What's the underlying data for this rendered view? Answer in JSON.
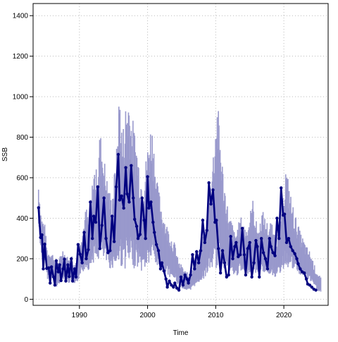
{
  "chart_data": {
    "type": "line",
    "xlabel": "Time",
    "ylabel": "SSB",
    "xlim": [
      1983.2,
      2026.5
    ],
    "ylim": [
      -30,
      1460
    ],
    "x_ticks": [
      1990,
      2000,
      2010,
      2020
    ],
    "y_ticks": [
      0,
      200,
      400,
      600,
      800,
      1000,
      1200,
      1400
    ],
    "grid": true,
    "grid_style": "dotted",
    "colors": {
      "band": "#9999cc",
      "line": "#000080",
      "axis": "#000000",
      "grid": "#bbbbbb"
    },
    "series": [
      {
        "x": [
          1984.0,
          1984.4,
          1984.9,
          1985.3,
          1985.8,
          1986.2,
          1986.7,
          1987.1,
          1987.5,
          1988.0,
          1988.4,
          1988.8,
          1989.3,
          1989.7,
          1990.1,
          1990.5,
          1991.0,
          1991.4,
          1991.8,
          1992.2,
          1992.6,
          1993.0,
          1993.5,
          1993.9,
          1994.3,
          1994.7,
          1995.1,
          1995.5,
          1995.9,
          1996.3,
          1996.8,
          1997.2,
          1997.6,
          1998.0,
          1998.5,
          1998.9,
          1999.3,
          1999.8,
          2000.2,
          2000.6,
          2001.0,
          2001.4,
          2001.9,
          2002.3,
          2002.8,
          2003.2,
          2003.6,
          2004.1,
          2004.5,
          2005.0,
          2005.4,
          2005.9,
          2006.3,
          2006.7,
          2007.2,
          2007.6,
          2008.1,
          2008.5,
          2009.0,
          2009.4,
          2009.8,
          2010.2,
          2010.7,
          2011.1,
          2011.5,
          2012.0,
          2012.4,
          2012.8,
          2013.3,
          2013.7,
          2014.2,
          2014.6,
          2015.0,
          2015.5,
          2015.9,
          2016.4,
          2016.8,
          2017.2,
          2017.7,
          2018.1,
          2018.5,
          2019.0,
          2019.4,
          2019.8,
          2020.3,
          2020.7,
          2021.1,
          2021.6,
          2022.0,
          2022.4,
          2022.9,
          2023.3,
          2023.7,
          2024.2,
          2024.6,
          2025.0,
          2025.5
        ],
        "mid": [
          452,
          305,
          275,
          160,
          165,
          150,
          105,
          135,
          170,
          150,
          130,
          150,
          110,
          140,
          210,
          230,
          290,
          250,
          335,
          395,
          375,
          480,
          430,
          370,
          330,
          300,
          360,
          420,
          560,
          440,
          510,
          540,
          490,
          460,
          420,
          360,
          330,
          390,
          450,
          490,
          420,
          340,
          300,
          260,
          230,
          210,
          190,
          170,
          120,
          105,
          90,
          80,
          75,
          115,
          135,
          160,
          190,
          220,
          300,
          370,
          430,
          520,
          440,
          360,
          310,
          250,
          240,
          200,
          230,
          250,
          230,
          225,
          260,
          300,
          240,
          220,
          270,
          250,
          230,
          240,
          210,
          200,
          245,
          295,
          380,
          340,
          300,
          260,
          240,
          210,
          190,
          170,
          160,
          130,
          100,
          80,
          60
        ],
        "band_half": [
          90,
          75,
          70,
          55,
          55,
          50,
          45,
          50,
          60,
          55,
          50,
          55,
          45,
          55,
          80,
          90,
          120,
          100,
          150,
          190,
          180,
          250,
          220,
          180,
          160,
          140,
          180,
          240,
          370,
          260,
          330,
          360,
          310,
          280,
          240,
          200,
          180,
          220,
          260,
          280,
          230,
          170,
          140,
          120,
          100,
          90,
          80,
          70,
          50,
          45,
          40,
          35,
          35,
          50,
          60,
          70,
          85,
          100,
          150,
          200,
          260,
          340,
          260,
          190,
          150,
          110,
          105,
          85,
          100,
          110,
          100,
          95,
          115,
          140,
          105,
          95,
          125,
          110,
          100,
          105,
          90,
          85,
          110,
          140,
          200,
          170,
          140,
          115,
          100,
          85,
          75,
          65,
          60,
          50,
          40,
          35,
          30
        ],
        "dots": [
          [
            1984.0,
            452
          ],
          [
            1984.3,
            305
          ],
          [
            1984.5,
            318
          ],
          [
            1984.7,
            150
          ],
          [
            1984.9,
            272
          ],
          [
            1985.2,
            152
          ],
          [
            1985.5,
            155
          ],
          [
            1985.7,
            80
          ],
          [
            1985.9,
            160
          ],
          [
            1986.2,
            110
          ],
          [
            1986.4,
            70
          ],
          [
            1986.6,
            190
          ],
          [
            1986.9,
            135
          ],
          [
            1987.1,
            170
          ],
          [
            1987.3,
            92
          ],
          [
            1987.6,
            150
          ],
          [
            1987.8,
            198
          ],
          [
            1988.0,
            90
          ],
          [
            1988.3,
            170
          ],
          [
            1988.5,
            112
          ],
          [
            1988.8,
            200
          ],
          [
            1989.0,
            90
          ],
          [
            1989.3,
            150
          ],
          [
            1989.5,
            110
          ],
          [
            1989.8,
            270
          ],
          [
            1990.1,
            222
          ],
          [
            1990.4,
            180
          ],
          [
            1990.7,
            330
          ],
          [
            1991.0,
            200
          ],
          [
            1991.3,
            245
          ],
          [
            1991.6,
            480
          ],
          [
            1991.9,
            300
          ],
          [
            1992.1,
            410
          ],
          [
            1992.4,
            380
          ],
          [
            1992.7,
            555
          ],
          [
            1993.0,
            250
          ],
          [
            1993.3,
            365
          ],
          [
            1993.6,
            500
          ],
          [
            1993.9,
            300
          ],
          [
            1994.2,
            230
          ],
          [
            1994.5,
            240
          ],
          [
            1994.8,
            410
          ],
          [
            1995.1,
            285
          ],
          [
            1995.4,
            555
          ],
          [
            1995.7,
            715
          ],
          [
            1995.9,
            490
          ],
          [
            1996.2,
            510
          ],
          [
            1996.5,
            450
          ],
          [
            1996.8,
            650
          ],
          [
            1997.0,
            520
          ],
          [
            1997.3,
            480
          ],
          [
            1997.6,
            660
          ],
          [
            1997.9,
            500
          ],
          [
            1998.1,
            395
          ],
          [
            1998.4,
            360
          ],
          [
            1998.6,
            300
          ],
          [
            1998.9,
            320
          ],
          [
            1999.2,
            500
          ],
          [
            1999.5,
            390
          ],
          [
            1999.7,
            300
          ],
          [
            2000.0,
            605
          ],
          [
            2000.2,
            450
          ],
          [
            2000.5,
            480
          ],
          [
            2000.8,
            380
          ],
          [
            2001.0,
            330
          ],
          [
            2001.3,
            270
          ],
          [
            2001.6,
            240
          ],
          [
            2001.9,
            150
          ],
          [
            2002.1,
            180
          ],
          [
            2002.4,
            140
          ],
          [
            2002.7,
            100
          ],
          [
            2002.9,
            60
          ],
          [
            2003.2,
            90
          ],
          [
            2003.5,
            70
          ],
          [
            2003.8,
            60
          ],
          [
            2004.0,
            80
          ],
          [
            2004.3,
            55
          ],
          [
            2004.6,
            45
          ],
          [
            2004.9,
            110
          ],
          [
            2005.2,
            70
          ],
          [
            2005.5,
            120
          ],
          [
            2005.8,
            100
          ],
          [
            2006.0,
            80
          ],
          [
            2006.3,
            120
          ],
          [
            2006.6,
            220
          ],
          [
            2006.9,
            150
          ],
          [
            2007.2,
            235
          ],
          [
            2007.5,
            180
          ],
          [
            2007.8,
            240
          ],
          [
            2008.1,
            390
          ],
          [
            2008.4,
            280
          ],
          [
            2008.7,
            340
          ],
          [
            2009.0,
            575
          ],
          [
            2009.3,
            470
          ],
          [
            2009.6,
            540
          ],
          [
            2009.9,
            380
          ],
          [
            2010.1,
            390
          ],
          [
            2010.4,
            250
          ],
          [
            2010.7,
            130
          ],
          [
            2011.0,
            240
          ],
          [
            2011.3,
            180
          ],
          [
            2011.6,
            110
          ],
          [
            2011.9,
            120
          ],
          [
            2012.2,
            310
          ],
          [
            2012.5,
            200
          ],
          [
            2012.8,
            260
          ],
          [
            2013.0,
            280
          ],
          [
            2013.3,
            210
          ],
          [
            2013.6,
            220
          ],
          [
            2013.9,
            350
          ],
          [
            2014.2,
            220
          ],
          [
            2014.4,
            120
          ],
          [
            2014.7,
            250
          ],
          [
            2015.0,
            280
          ],
          [
            2015.3,
            110
          ],
          [
            2015.6,
            180
          ],
          [
            2015.9,
            290
          ],
          [
            2016.1,
            260
          ],
          [
            2016.4,
            110
          ],
          [
            2016.7,
            300
          ],
          [
            2017.0,
            230
          ],
          [
            2017.3,
            200
          ],
          [
            2017.6,
            150
          ],
          [
            2017.9,
            300
          ],
          [
            2018.1,
            260
          ],
          [
            2018.4,
            230
          ],
          [
            2018.7,
            215
          ],
          [
            2019.0,
            400
          ],
          [
            2019.3,
            300
          ],
          [
            2019.6,
            550
          ],
          [
            2019.9,
            415
          ],
          [
            2020.1,
            420
          ],
          [
            2020.4,
            280
          ],
          [
            2020.7,
            300
          ],
          [
            2021.0,
            260
          ],
          [
            2021.3,
            240
          ],
          [
            2021.6,
            225
          ],
          [
            2021.9,
            200
          ],
          [
            2022.1,
            175
          ],
          [
            2022.4,
            150
          ],
          [
            2022.7,
            135
          ],
          [
            2023.0,
            130
          ],
          [
            2023.3,
            100
          ],
          [
            2023.5,
            75
          ],
          [
            2023.8,
            70
          ],
          [
            2024.1,
            60
          ],
          [
            2024.4,
            50
          ],
          [
            2024.7,
            45
          ]
        ]
      }
    ]
  }
}
